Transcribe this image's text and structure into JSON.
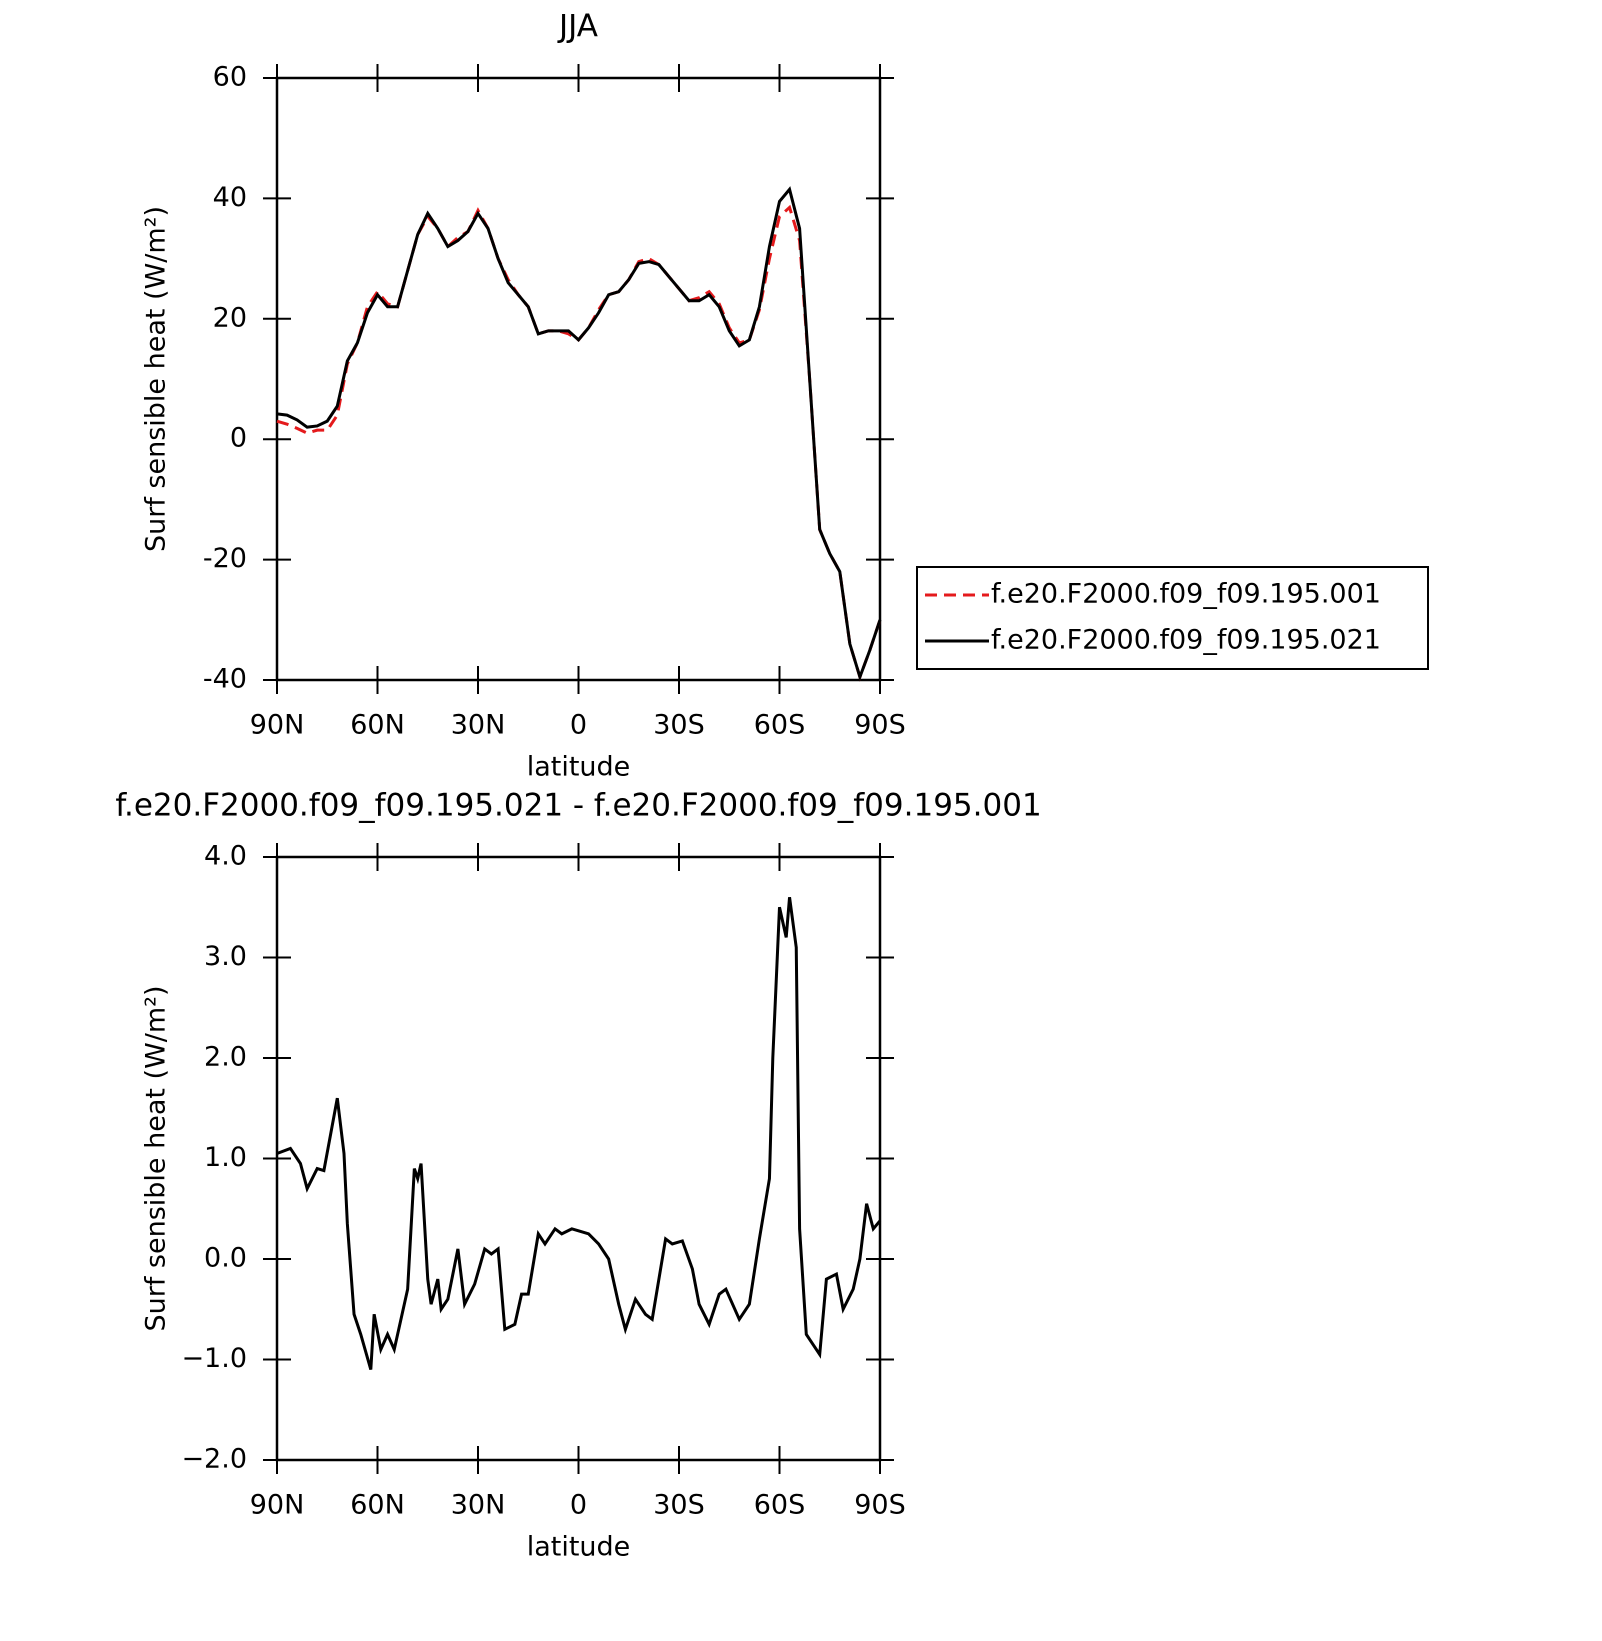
{
  "chart_data": [
    {
      "type": "line",
      "title": "JJA",
      "xlabel": "latitude",
      "ylabel": "Surf sensible heat (W/m²)",
      "x": [
        90,
        87,
        84,
        81,
        78,
        75,
        72,
        69,
        66,
        63,
        60,
        57,
        54,
        51,
        48,
        45,
        42,
        39,
        36,
        33,
        30,
        27,
        24,
        21,
        18,
        15,
        12,
        9,
        6,
        3,
        0,
        -3,
        -6,
        -9,
        -12,
        -15,
        -18,
        -21,
        -24,
        -27,
        -30,
        -33,
        -36,
        -39,
        -42,
        -45,
        -48,
        -51,
        -54,
        -57,
        -60,
        -63,
        -66,
        -69,
        -72,
        -75,
        -78,
        -81,
        -84,
        -87,
        -90
      ],
      "series": [
        {
          "name": "f.e20.F2000.f09_f09.195.001",
          "color": "#e41a1c",
          "linestyle": "dashed",
          "values": [
            3,
            2.5,
            1.8,
            1,
            1.5,
            1.5,
            4,
            12.5,
            16,
            22,
            24.5,
            22.5,
            22,
            28,
            34,
            37,
            35,
            32,
            33.5,
            34.5,
            38,
            35,
            30,
            26.5,
            24,
            22,
            17.5,
            18,
            18,
            17.5,
            16.5,
            18.5,
            21.5,
            24,
            24.5,
            26.5,
            29.5,
            30,
            29,
            27,
            25,
            23,
            23.5,
            24.5,
            22.5,
            18.5,
            16,
            16.5,
            21.5,
            30,
            37,
            38.5,
            33,
            10,
            -15,
            -19,
            -22,
            -34,
            -39.5,
            -35,
            -30
          ]
        },
        {
          "name": "f.e20.F2000.f09_f09.195.021",
          "color": "#000000",
          "linestyle": "solid",
          "values": [
            4.2,
            4,
            3.2,
            2,
            2.2,
            3,
            5.5,
            13,
            16,
            21,
            24,
            22,
            22,
            28,
            34,
            37.5,
            35,
            32,
            33,
            34.5,
            37.5,
            35,
            30,
            26,
            24,
            22,
            17.5,
            18,
            18,
            18,
            16.5,
            18.5,
            21,
            24,
            24.5,
            26.5,
            29.2,
            29.5,
            29,
            27,
            25,
            23,
            23,
            24,
            22,
            18,
            15.5,
            16.5,
            22,
            32,
            39.5,
            41.5,
            35,
            10,
            -15,
            -19,
            -22,
            -34,
            -39.5,
            -35,
            -30
          ]
        }
      ],
      "xlim": [
        90,
        -90
      ],
      "xticks": [
        {
          "value": 90,
          "label": "90N"
        },
        {
          "value": 60,
          "label": "60N"
        },
        {
          "value": 30,
          "label": "30N"
        },
        0,
        {
          "value": -30,
          "label": "30S"
        },
        {
          "value": -60,
          "label": "60S"
        },
        {
          "value": -90,
          "label": "90S"
        }
      ],
      "ylim": [
        -40,
        60
      ],
      "yticks": [
        -40,
        -20,
        0,
        20,
        40,
        60
      ],
      "legend": "right"
    },
    {
      "type": "line",
      "title": "f.e20.F2000.f09_f09.195.021 - f.e20.F2000.f09_f09.195.001",
      "xlabel": "latitude",
      "ylabel": "Surf sensible heat (W/m²)",
      "x": [
        90,
        86,
        83,
        81,
        78,
        76,
        72,
        70,
        69,
        67,
        65,
        62,
        61,
        59,
        57,
        55,
        53,
        51,
        49,
        48,
        47,
        45,
        44,
        42,
        41,
        39,
        36,
        34,
        31,
        28,
        26,
        24,
        22,
        19,
        17,
        15,
        12,
        10,
        7,
        5,
        2,
        0,
        -3,
        -6,
        -9,
        -12,
        -14,
        -17,
        -20,
        -22,
        -26,
        -28,
        -31,
        -34,
        -36,
        -39,
        -42,
        -44,
        -48,
        -51,
        -54,
        -57,
        -58,
        -60,
        -62,
        -63,
        -65,
        -66,
        -68,
        -70,
        -72,
        -74,
        -77,
        -79,
        -82,
        -84,
        -86,
        -88,
        -90
      ],
      "series": [
        {
          "color": "#000000",
          "linestyle": "solid",
          "values": [
            1.05,
            1.1,
            0.95,
            0.7,
            0.9,
            0.88,
            1.6,
            1.05,
            0.35,
            -0.55,
            -0.75,
            -1.1,
            -0.55,
            -0.9,
            -0.75,
            -0.9,
            -0.6,
            -0.3,
            0.9,
            0.8,
            0.95,
            -0.2,
            -0.45,
            -0.2,
            -0.5,
            -0.4,
            0.1,
            -0.45,
            -0.25,
            0.1,
            0.05,
            0.1,
            -0.7,
            -0.65,
            -0.35,
            -0.35,
            0.25,
            0.15,
            0.3,
            0.25,
            0.3,
            0.28,
            0.25,
            0.15,
            0,
            -0.45,
            -0.7,
            -0.4,
            -0.55,
            -0.6,
            0.2,
            0.15,
            0.18,
            -0.1,
            -0.45,
            -0.65,
            -0.35,
            -0.3,
            -0.6,
            -0.45,
            0.2,
            0.8,
            2,
            3.5,
            3.2,
            3.6,
            3.1,
            0.3,
            -0.75,
            -0.85,
            -0.95,
            -0.2,
            -0.15,
            -0.5,
            -0.3,
            0,
            0.55,
            0.3,
            0.38
          ]
        }
      ],
      "xlim": [
        90,
        -90
      ],
      "xticks": [
        {
          "value": 90,
          "label": "90N"
        },
        {
          "value": 60,
          "label": "60N"
        },
        {
          "value": 30,
          "label": "30N"
        },
        0,
        {
          "value": -30,
          "label": "30S"
        },
        {
          "value": -60,
          "label": "60S"
        },
        {
          "value": -90,
          "label": "90S"
        }
      ],
      "ylim": [
        -2,
        4
      ],
      "yticks": [
        {
          "value": -2,
          "label": "−2.0"
        },
        {
          "value": -1,
          "label": "−1.0"
        },
        {
          "value": 0,
          "label": "0.0"
        },
        {
          "value": 1,
          "label": "1.0"
        },
        {
          "value": 2,
          "label": "2.0"
        },
        {
          "value": 3,
          "label": "3.0"
        },
        {
          "value": 4,
          "label": "4.0"
        }
      ]
    }
  ]
}
